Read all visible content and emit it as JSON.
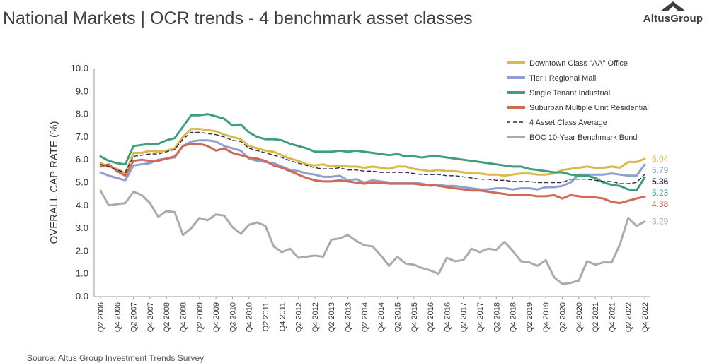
{
  "title": "National Markets | OCR trends - 4 benchmark asset classes",
  "logo": {
    "text": "AltusGroup"
  },
  "source": "Source:  Altus Group Investment Trends Survey",
  "chart_data": {
    "type": "line",
    "ylabel": "OVERALL CAP RATE (%)",
    "ylim": [
      0,
      10
    ],
    "yticks": [
      "0.0",
      "1.0",
      "2.0",
      "3.0",
      "4.0",
      "5.0",
      "6.0",
      "7.0",
      "8.0",
      "9.0",
      "10.0"
    ],
    "x_tick_labels": [
      "Q2 2006",
      "Q4 2006",
      "Q2 2007",
      "Q4 2007",
      "Q2 2008",
      "Q4 2008",
      "Q2 2009",
      "Q4 2009",
      "Q2 2010",
      "Q4 2010",
      "Q2 2011",
      "Q4 2011",
      "Q2 2012",
      "Q4 2012",
      "Q2 2013",
      "Q4 2013",
      "Q2 2014",
      "Q4 2014",
      "Q2 2015",
      "Q4 2015",
      "Q2 2016",
      "Q4 2016",
      "Q2 2017",
      "Q4 2017",
      "Q2 2018",
      "Q4 2018",
      "Q2 2019",
      "Q4 2019",
      "Q2 2020",
      "Q4 2020",
      "Q2 2021",
      "Q4 2021",
      "Q2 2022",
      "Q4 2022"
    ],
    "x_start": "Q2 2006",
    "legend_position": "top-right",
    "grid": false,
    "series": [
      {
        "name": "Downtown Class \"AA\" Office",
        "color": "#d9b948",
        "dashed": false,
        "end_label": "6.04",
        "values": [
          5.85,
          5.7,
          5.6,
          5.4,
          6.3,
          6.3,
          6.4,
          6.35,
          6.4,
          6.5,
          7.0,
          7.35,
          7.35,
          7.3,
          7.25,
          7.1,
          7.0,
          6.9,
          6.6,
          6.5,
          6.4,
          6.35,
          6.2,
          6.05,
          5.95,
          5.8,
          5.75,
          5.8,
          5.7,
          5.75,
          5.7,
          5.7,
          5.65,
          5.7,
          5.65,
          5.6,
          5.7,
          5.7,
          5.6,
          5.55,
          5.5,
          5.55,
          5.5,
          5.5,
          5.45,
          5.4,
          5.4,
          5.35,
          5.35,
          5.3,
          5.35,
          5.4,
          5.4,
          5.35,
          5.35,
          5.4,
          5.55,
          5.6,
          5.65,
          5.7,
          5.65,
          5.65,
          5.7,
          5.65,
          5.9,
          5.9,
          6.04
        ]
      },
      {
        "name": "Tier I Regional Mall",
        "color": "#8e9fd0",
        "dashed": false,
        "end_label": "5.79",
        "values": [
          5.45,
          5.3,
          5.2,
          5.1,
          5.75,
          5.8,
          5.85,
          6.0,
          6.05,
          6.1,
          6.6,
          6.8,
          6.85,
          6.85,
          6.8,
          6.6,
          6.5,
          6.4,
          6.05,
          5.95,
          5.9,
          5.85,
          5.7,
          5.55,
          5.5,
          5.4,
          5.35,
          5.25,
          5.25,
          5.3,
          5.1,
          5.15,
          5.0,
          5.1,
          5.05,
          5.0,
          5.0,
          5.0,
          5.0,
          4.95,
          4.85,
          4.9,
          4.85,
          4.85,
          4.8,
          4.75,
          4.7,
          4.7,
          4.75,
          4.75,
          4.7,
          4.75,
          4.75,
          4.7,
          4.8,
          4.8,
          4.85,
          5.0,
          5.35,
          5.35,
          5.35,
          5.35,
          5.4,
          5.35,
          5.3,
          5.3,
          5.79
        ]
      },
      {
        "name": "Single Tenant Industrial",
        "color": "#3e9e7e",
        "dashed": false,
        "end_label": "5.23",
        "values": [
          6.15,
          5.95,
          5.85,
          5.8,
          6.6,
          6.65,
          6.7,
          6.7,
          6.85,
          6.95,
          7.45,
          7.95,
          7.95,
          8.0,
          7.9,
          7.8,
          7.5,
          7.55,
          7.2,
          7.0,
          6.9,
          6.9,
          6.85,
          6.7,
          6.6,
          6.5,
          6.35,
          6.35,
          6.35,
          6.4,
          6.35,
          6.4,
          6.35,
          6.3,
          6.25,
          6.2,
          6.25,
          6.15,
          6.15,
          6.1,
          6.15,
          6.15,
          6.1,
          6.05,
          6.0,
          5.95,
          5.9,
          5.85,
          5.8,
          5.75,
          5.7,
          5.7,
          5.6,
          5.55,
          5.5,
          5.45,
          5.45,
          5.35,
          5.3,
          5.3,
          5.2,
          5.0,
          4.9,
          4.85,
          4.7,
          4.65,
          5.23
        ]
      },
      {
        "name": "Suburban Multiple Unit Residential",
        "color": "#d06a55",
        "dashed": false,
        "end_label": "4.38",
        "values": [
          5.7,
          5.8,
          5.5,
          5.3,
          5.95,
          6.0,
          5.95,
          5.95,
          6.05,
          6.15,
          6.6,
          6.7,
          6.7,
          6.6,
          6.4,
          6.5,
          6.3,
          6.2,
          6.1,
          6.05,
          5.95,
          5.75,
          5.65,
          5.5,
          5.35,
          5.2,
          5.1,
          5.05,
          5.05,
          5.1,
          5.05,
          5.0,
          4.95,
          5.0,
          5.0,
          4.95,
          4.95,
          4.95,
          4.95,
          4.9,
          4.9,
          4.85,
          4.8,
          4.75,
          4.7,
          4.65,
          4.65,
          4.6,
          4.55,
          4.5,
          4.45,
          4.45,
          4.45,
          4.4,
          4.4,
          4.45,
          4.3,
          4.45,
          4.4,
          4.35,
          4.35,
          4.3,
          4.15,
          4.1,
          4.2,
          4.3,
          4.38
        ]
      },
      {
        "name": "4 Asset Class Average",
        "color": "#2e2a4a",
        "dashed": true,
        "end_label": "5.36",
        "values": [
          5.8,
          5.7,
          5.55,
          5.45,
          6.15,
          6.2,
          6.25,
          6.25,
          6.35,
          6.45,
          6.9,
          7.2,
          7.2,
          7.15,
          7.1,
          7.0,
          6.85,
          6.8,
          6.5,
          6.4,
          6.3,
          6.2,
          6.1,
          5.95,
          5.85,
          5.75,
          5.65,
          5.6,
          5.6,
          5.65,
          5.55,
          5.55,
          5.5,
          5.5,
          5.45,
          5.45,
          5.45,
          5.45,
          5.4,
          5.35,
          5.35,
          5.35,
          5.3,
          5.3,
          5.25,
          5.2,
          5.15,
          5.15,
          5.1,
          5.1,
          5.05,
          5.05,
          5.05,
          5.0,
          5.0,
          5.0,
          5.0,
          5.15,
          5.15,
          5.15,
          5.1,
          5.05,
          5.05,
          4.95,
          4.95,
          5.0,
          5.36
        ]
      },
      {
        "name": "BOC 10-Year Benchmark Bond",
        "color": "#aaaaaa",
        "dashed": false,
        "end_label": "3.29",
        "values": [
          4.65,
          4.0,
          4.05,
          4.1,
          4.6,
          4.45,
          4.1,
          3.5,
          3.75,
          3.7,
          2.7,
          3.0,
          3.45,
          3.35,
          3.6,
          3.55,
          3.05,
          2.75,
          3.15,
          3.25,
          3.1,
          2.2,
          1.95,
          2.1,
          1.7,
          1.75,
          1.8,
          1.75,
          2.5,
          2.55,
          2.7,
          2.45,
          2.25,
          2.2,
          1.8,
          1.35,
          1.75,
          1.45,
          1.4,
          1.25,
          1.15,
          1.0,
          1.7,
          1.55,
          1.6,
          2.1,
          1.95,
          2.1,
          2.05,
          2.4,
          2.0,
          1.55,
          1.5,
          1.35,
          1.6,
          0.85,
          0.55,
          0.6,
          0.7,
          1.55,
          1.4,
          1.5,
          1.5,
          2.3,
          3.45,
          3.1,
          3.29
        ]
      }
    ]
  }
}
